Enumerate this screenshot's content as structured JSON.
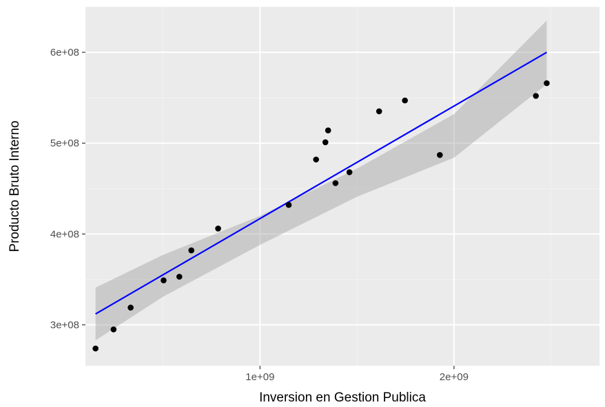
{
  "chart_data": {
    "type": "scatter",
    "title": "",
    "xlabel": "Inversion en Gestion Publica",
    "ylabel": "Producto Bruto Interno",
    "xlim": [
      100000000.0,
      2750000000.0
    ],
    "ylim": [
      255000000.0,
      650000000.0
    ],
    "grid": true,
    "x_ticks": [
      {
        "value": 1000000000.0,
        "label": "1e+09"
      },
      {
        "value": 2000000000.0,
        "label": "2e+09"
      }
    ],
    "y_ticks": [
      {
        "value": 300000000.0,
        "label": "3e+08"
      },
      {
        "value": 400000000.0,
        "label": "4e+08"
      },
      {
        "value": 500000000.0,
        "label": "5e+08"
      },
      {
        "value": 600000000.0,
        "label": "6e+08"
      }
    ],
    "points": [
      {
        "x": 152000000.0,
        "y": 274000000.0
      },
      {
        "x": 245000000.0,
        "y": 295000000.0
      },
      {
        "x": 333000000.0,
        "y": 319000000.0
      },
      {
        "x": 503000000.0,
        "y": 349000000.0
      },
      {
        "x": 584000000.0,
        "y": 353000000.0
      },
      {
        "x": 646000000.0,
        "y": 382000000.0
      },
      {
        "x": 784000000.0,
        "y": 406000000.0
      },
      {
        "x": 1148000000.0,
        "y": 432000000.0
      },
      {
        "x": 1289000000.0,
        "y": 482000000.0
      },
      {
        "x": 1337000000.0,
        "y": 501000000.0
      },
      {
        "x": 1351000000.0,
        "y": 514000000.0
      },
      {
        "x": 1389000000.0,
        "y": 456000000.0
      },
      {
        "x": 1461000000.0,
        "y": 468000000.0
      },
      {
        "x": 1614000000.0,
        "y": 535000000.0
      },
      {
        "x": 1747000000.0,
        "y": 547000000.0
      },
      {
        "x": 1927000000.0,
        "y": 487000000.0
      },
      {
        "x": 2422000000.0,
        "y": 552000000.0
      },
      {
        "x": 2478000000.0,
        "y": 566000000.0
      }
    ],
    "fit_line": {
      "x": [
        152000000.0,
        2478000000.0
      ],
      "y": [
        312000000.0,
        600000000.0
      ]
    },
    "confidence_band": {
      "x": [
        152000000.0,
        500000000.0,
        1000000000.0,
        1500000000.0,
        2000000000.0,
        2478000000.0
      ],
      "lower": [
        283000000.0,
        331000000.0,
        388000000.0,
        441000000.0,
        484000000.0,
        565000000.0
      ],
      "upper": [
        341000000.0,
        377000000.0,
        420000000.0,
        472000000.0,
        532000000.0,
        635000000.0
      ]
    },
    "colors": {
      "panel": "#ebebeb",
      "grid_major": "#ffffff",
      "grid_minor": "#f2f2f2",
      "point": "#000000",
      "line": "#0000ff",
      "band": "#999999"
    }
  }
}
